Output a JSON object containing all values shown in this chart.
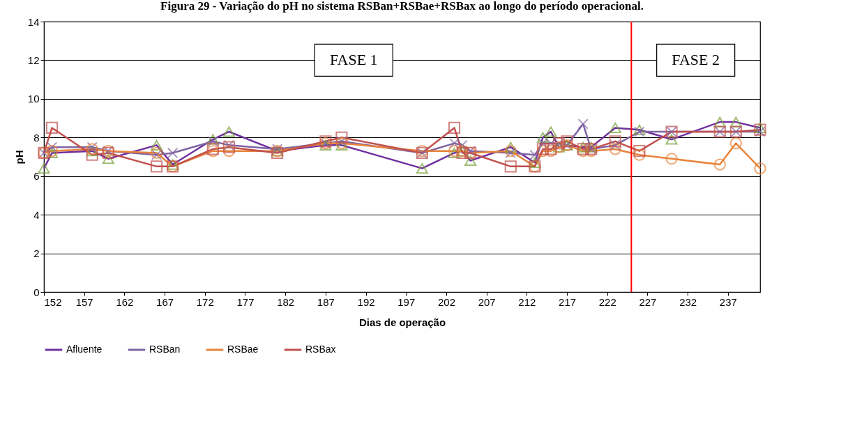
{
  "chart_data": {
    "type": "line",
    "title": "Figura 29 - Variação do pH no sistema RSBan+RSBae+RSBax ao longo do período operacional.",
    "xlabel": "Dias de operação",
    "ylabel": "pH",
    "x": [
      152,
      153,
      158,
      160,
      166,
      168,
      173,
      175,
      181,
      187,
      189,
      199,
      203,
      204,
      205,
      210,
      213,
      214,
      215,
      216,
      217,
      219,
      220,
      223,
      226,
      230,
      236,
      238,
      241
    ],
    "series": [
      {
        "name": "Afluente",
        "color": "#7030a0",
        "marker": "triangle",
        "colors": [
          "#77a03c",
          "#77a03c",
          "#77a03c",
          "#77a03c",
          "#77a03c",
          "#77a03c",
          "#77a03c",
          "#77a03c",
          "#77a03c",
          "#77a03c",
          "#77a03c",
          "#77a03c",
          "#77a03c",
          "#77a03c",
          "#77a03c",
          "#77a03c",
          "#77a03c",
          "#77a03c",
          "#77a03c",
          "#77a03c",
          "#77a03c",
          "#77a03c",
          "#77a03c",
          "#77a03c",
          "#77a03c",
          "#77a03c",
          "#77a03c",
          "#77a03c",
          "#77a03c"
        ],
        "values": [
          6.4,
          7.2,
          7.3,
          6.9,
          7.6,
          6.6,
          7.9,
          8.3,
          7.3,
          7.6,
          7.6,
          6.4,
          7.2,
          7.3,
          6.8,
          7.5,
          6.7,
          8.0,
          8.3,
          7.5,
          7.6,
          7.5,
          7.5,
          8.5,
          8.4,
          7.9,
          8.8,
          8.8,
          8.5
        ]
      },
      {
        "name": "RSBan",
        "color": "#8064a2",
        "marker": "cross",
        "values": [
          7.2,
          7.5,
          7.5,
          7.3,
          7.1,
          7.2,
          7.8,
          7.6,
          7.4,
          7.7,
          7.8,
          7.2,
          7.7,
          7.6,
          7.3,
          7.2,
          7.1,
          7.7,
          7.7,
          7.7,
          7.6,
          8.7,
          7.4,
          7.6,
          8.3,
          8.3,
          8.3,
          8.3,
          8.3
        ]
      },
      {
        "name": "RSBae",
        "color": "#e8833a",
        "marker": "circle",
        "values": [
          7.2,
          7.3,
          7.4,
          7.3,
          7.2,
          6.5,
          7.3,
          7.3,
          7.3,
          7.7,
          7.7,
          7.3,
          7.3,
          7.3,
          7.2,
          7.3,
          6.5,
          7.3,
          7.3,
          7.5,
          7.6,
          7.3,
          7.3,
          7.4,
          7.1,
          6.9,
          6.6,
          7.7,
          6.4
        ]
      },
      {
        "name": "RSBax",
        "color": "#c0504d",
        "marker": "square",
        "values": [
          7.2,
          8.5,
          7.1,
          7.2,
          6.5,
          6.5,
          7.4,
          7.5,
          7.2,
          7.8,
          8.0,
          7.2,
          8.5,
          7.2,
          7.2,
          6.5,
          6.5,
          7.4,
          7.4,
          7.7,
          7.8,
          7.4,
          7.4,
          7.8,
          7.3,
          8.3,
          8.3,
          8.3,
          8.4
        ]
      }
    ],
    "xlim": [
      152,
      241
    ],
    "xticks": [
      152,
      157,
      162,
      167,
      172,
      177,
      182,
      187,
      192,
      197,
      202,
      207,
      212,
      217,
      222,
      227,
      232,
      237
    ],
    "ylim": [
      0,
      14
    ],
    "yticks": [
      0,
      2,
      4,
      6,
      8,
      10,
      12,
      14
    ],
    "grid": "y",
    "legend": "bottom",
    "ref_lines": [
      {
        "axis": "x",
        "value": 225,
        "color": "#ff0000"
      }
    ],
    "annotations": [
      "FASE 1",
      "FASE 2"
    ]
  }
}
